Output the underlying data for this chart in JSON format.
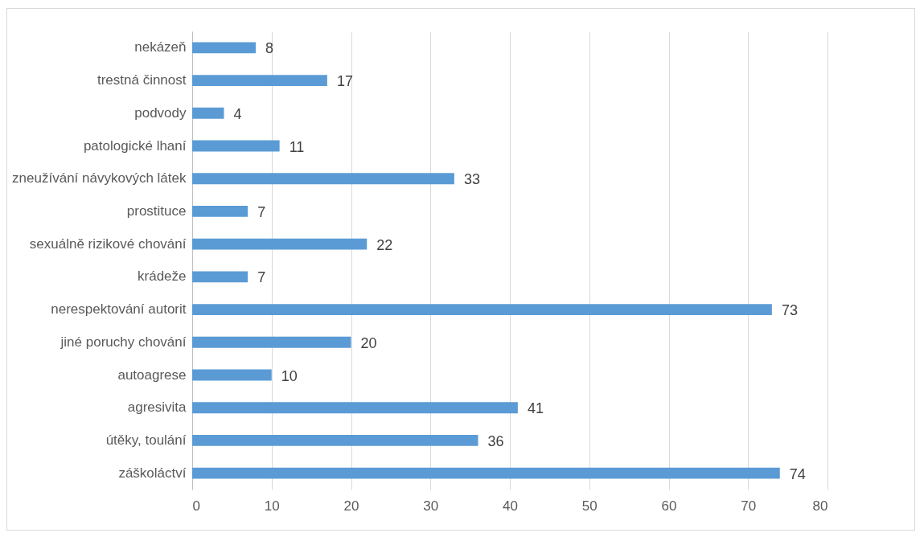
{
  "chart_data": {
    "type": "bar",
    "orientation": "horizontal",
    "categories": [
      "nekázeň",
      "trestná činnost",
      "podvody",
      "patologické lhaní",
      "zneužívání návykových látek",
      "prostituce",
      "sexuálně rizikové chování",
      "krádeže",
      "nerespektování autorit",
      "jiné poruchy chování",
      "autoagrese",
      "agresivita",
      "útěky, toulání",
      "záškoláctví"
    ],
    "values": [
      8,
      17,
      4,
      11,
      33,
      7,
      22,
      7,
      73,
      20,
      10,
      41,
      36,
      74
    ],
    "color": "#5b9bd5",
    "xlim": [
      0,
      80
    ],
    "xticks": [
      0,
      10,
      20,
      30,
      40,
      50,
      60,
      70,
      80
    ],
    "grid": "x",
    "data_labels": true
  }
}
